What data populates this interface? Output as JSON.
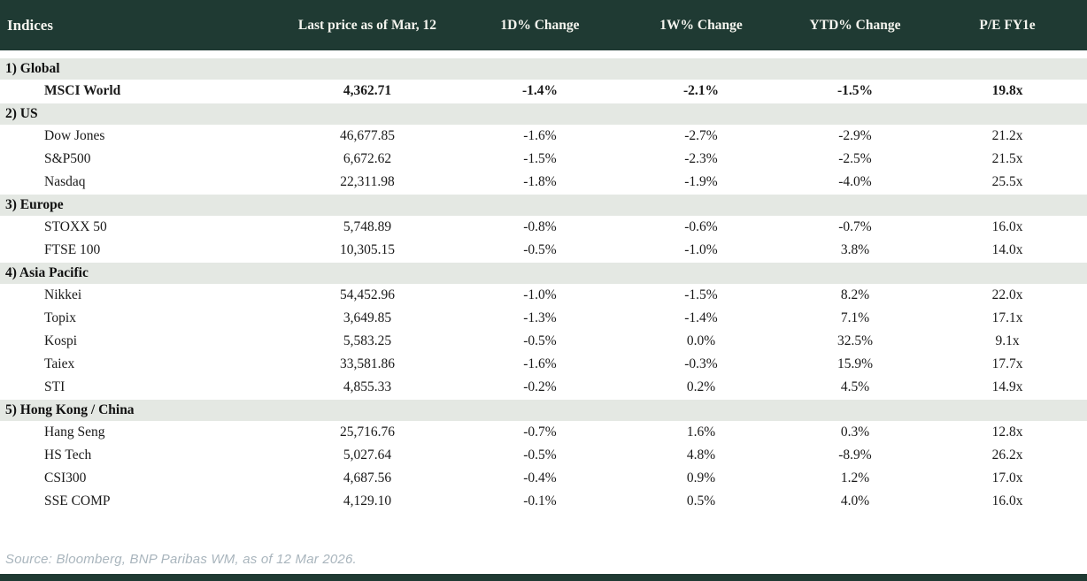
{
  "table": {
    "columns": [
      "Indices",
      "Last price as of Mar, 12",
      "1D% Change",
      "1W% Change",
      "YTD% Change",
      "P/E FY1e"
    ],
    "sections": [
      {
        "label": "1) Global",
        "rows": [
          {
            "name": "MSCI World",
            "price": "4,362.71",
            "d1": "-1.4%",
            "w1": "-2.1%",
            "ytd": "-1.5%",
            "pe": "19.8x",
            "bold": true
          }
        ]
      },
      {
        "label": "2) US",
        "rows": [
          {
            "name": "Dow Jones",
            "price": "46,677.85",
            "d1": "-1.6%",
            "w1": "-2.7%",
            "ytd": "-2.9%",
            "pe": "21.2x",
            "bold": false
          },
          {
            "name": "S&P500",
            "price": "6,672.62",
            "d1": "-1.5%",
            "w1": "-2.3%",
            "ytd": "-2.5%",
            "pe": "21.5x",
            "bold": false
          },
          {
            "name": "Nasdaq",
            "price": "22,311.98",
            "d1": "-1.8%",
            "w1": "-1.9%",
            "ytd": "-4.0%",
            "pe": "25.5x",
            "bold": false
          }
        ]
      },
      {
        "label": "3) Europe",
        "rows": [
          {
            "name": "STOXX 50",
            "price": "5,748.89",
            "d1": "-0.8%",
            "w1": "-0.6%",
            "ytd": "-0.7%",
            "pe": "16.0x",
            "bold": false
          },
          {
            "name": "FTSE 100",
            "price": "10,305.15",
            "d1": "-0.5%",
            "w1": "-1.0%",
            "ytd": "3.8%",
            "pe": "14.0x",
            "bold": false
          }
        ]
      },
      {
        "label": "4) Asia Pacific",
        "rows": [
          {
            "name": "Nikkei",
            "price": "54,452.96",
            "d1": "-1.0%",
            "w1": "-1.5%",
            "ytd": "8.2%",
            "pe": "22.0x",
            "bold": false
          },
          {
            "name": "Topix",
            "price": "3,649.85",
            "d1": "-1.3%",
            "w1": "-1.4%",
            "ytd": "7.1%",
            "pe": "17.1x",
            "bold": false
          },
          {
            "name": "Kospi",
            "price": "5,583.25",
            "d1": "-0.5%",
            "w1": "0.0%",
            "ytd": "32.5%",
            "pe": "9.1x",
            "bold": false
          },
          {
            "name": "Taiex",
            "price": "33,581.86",
            "d1": "-1.6%",
            "w1": "-0.3%",
            "ytd": "15.9%",
            "pe": "17.7x",
            "bold": false
          },
          {
            "name": "STI",
            "price": "4,855.33",
            "d1": "-0.2%",
            "w1": "0.2%",
            "ytd": "4.5%",
            "pe": "14.9x",
            "bold": false
          }
        ]
      },
      {
        "label": "5) Hong Kong / China",
        "rows": [
          {
            "name": "Hang Seng",
            "price": "25,716.76",
            "d1": "-0.7%",
            "w1": "1.6%",
            "ytd": "0.3%",
            "pe": "12.8x",
            "bold": false
          },
          {
            "name": "HS Tech",
            "price": "5,027.64",
            "d1": "-0.5%",
            "w1": "4.8%",
            "ytd": "-8.9%",
            "pe": "26.2x",
            "bold": false
          },
          {
            "name": "CSI300",
            "price": "4,687.56",
            "d1": "-0.4%",
            "w1": "0.9%",
            "ytd": "1.2%",
            "pe": "17.0x",
            "bold": false
          },
          {
            "name": "SSE COMP",
            "price": "4,129.10",
            "d1": "-0.1%",
            "w1": "0.5%",
            "ytd": "4.0%",
            "pe": "16.0x",
            "bold": false
          }
        ]
      }
    ]
  },
  "footer": {
    "source": "Source: Bloomberg, BNP Paribas WM, as of 12 Mar 2026."
  },
  "colors": {
    "header_bg": "#1f3a33",
    "section_bg": "#e4e8e3",
    "negative": "#c00000",
    "positive": "#1e9447",
    "source_text": "#a9b5bd"
  }
}
